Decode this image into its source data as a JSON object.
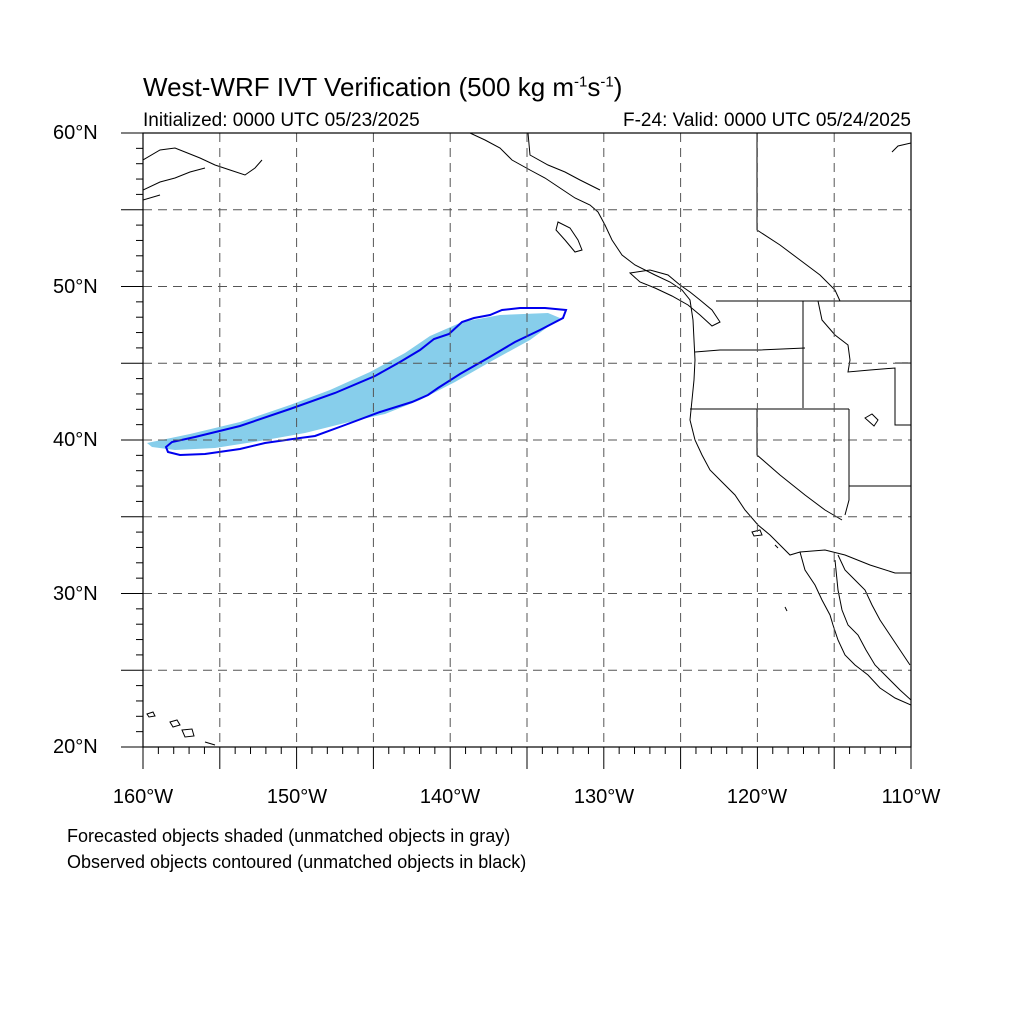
{
  "title": {
    "main": "West-WRF IVT Verification (500 kg m",
    "exp1": "-1",
    "mid": "s",
    "exp2": "-1",
    "end": ")"
  },
  "subtitle_left": "Initialized: 0000 UTC 05/23/2025",
  "subtitle_right": "F-24: Valid: 0000 UTC 05/24/2025",
  "lat_labels": [
    "60°N",
    "50°N",
    "40°N",
    "30°N",
    "20°N"
  ],
  "lon_labels": [
    "160°W",
    "150°W",
    "140°W",
    "130°W",
    "120°W",
    "110°W"
  ],
  "footnotes": [
    "Forecasted objects shaded (unmatched objects in gray)",
    "Observed objects contoured (unmatched objects in black)"
  ],
  "colors": {
    "forecast_fill": "#87ceeb",
    "observed_contour": "#0000ee",
    "grid": "#555555",
    "coast": "#000000"
  },
  "map": {
    "lon_range": [
      -160,
      -110
    ],
    "lat_range": [
      20,
      60
    ],
    "grid_interval_deg": 5,
    "projection": "cylindrical-equidistant"
  }
}
